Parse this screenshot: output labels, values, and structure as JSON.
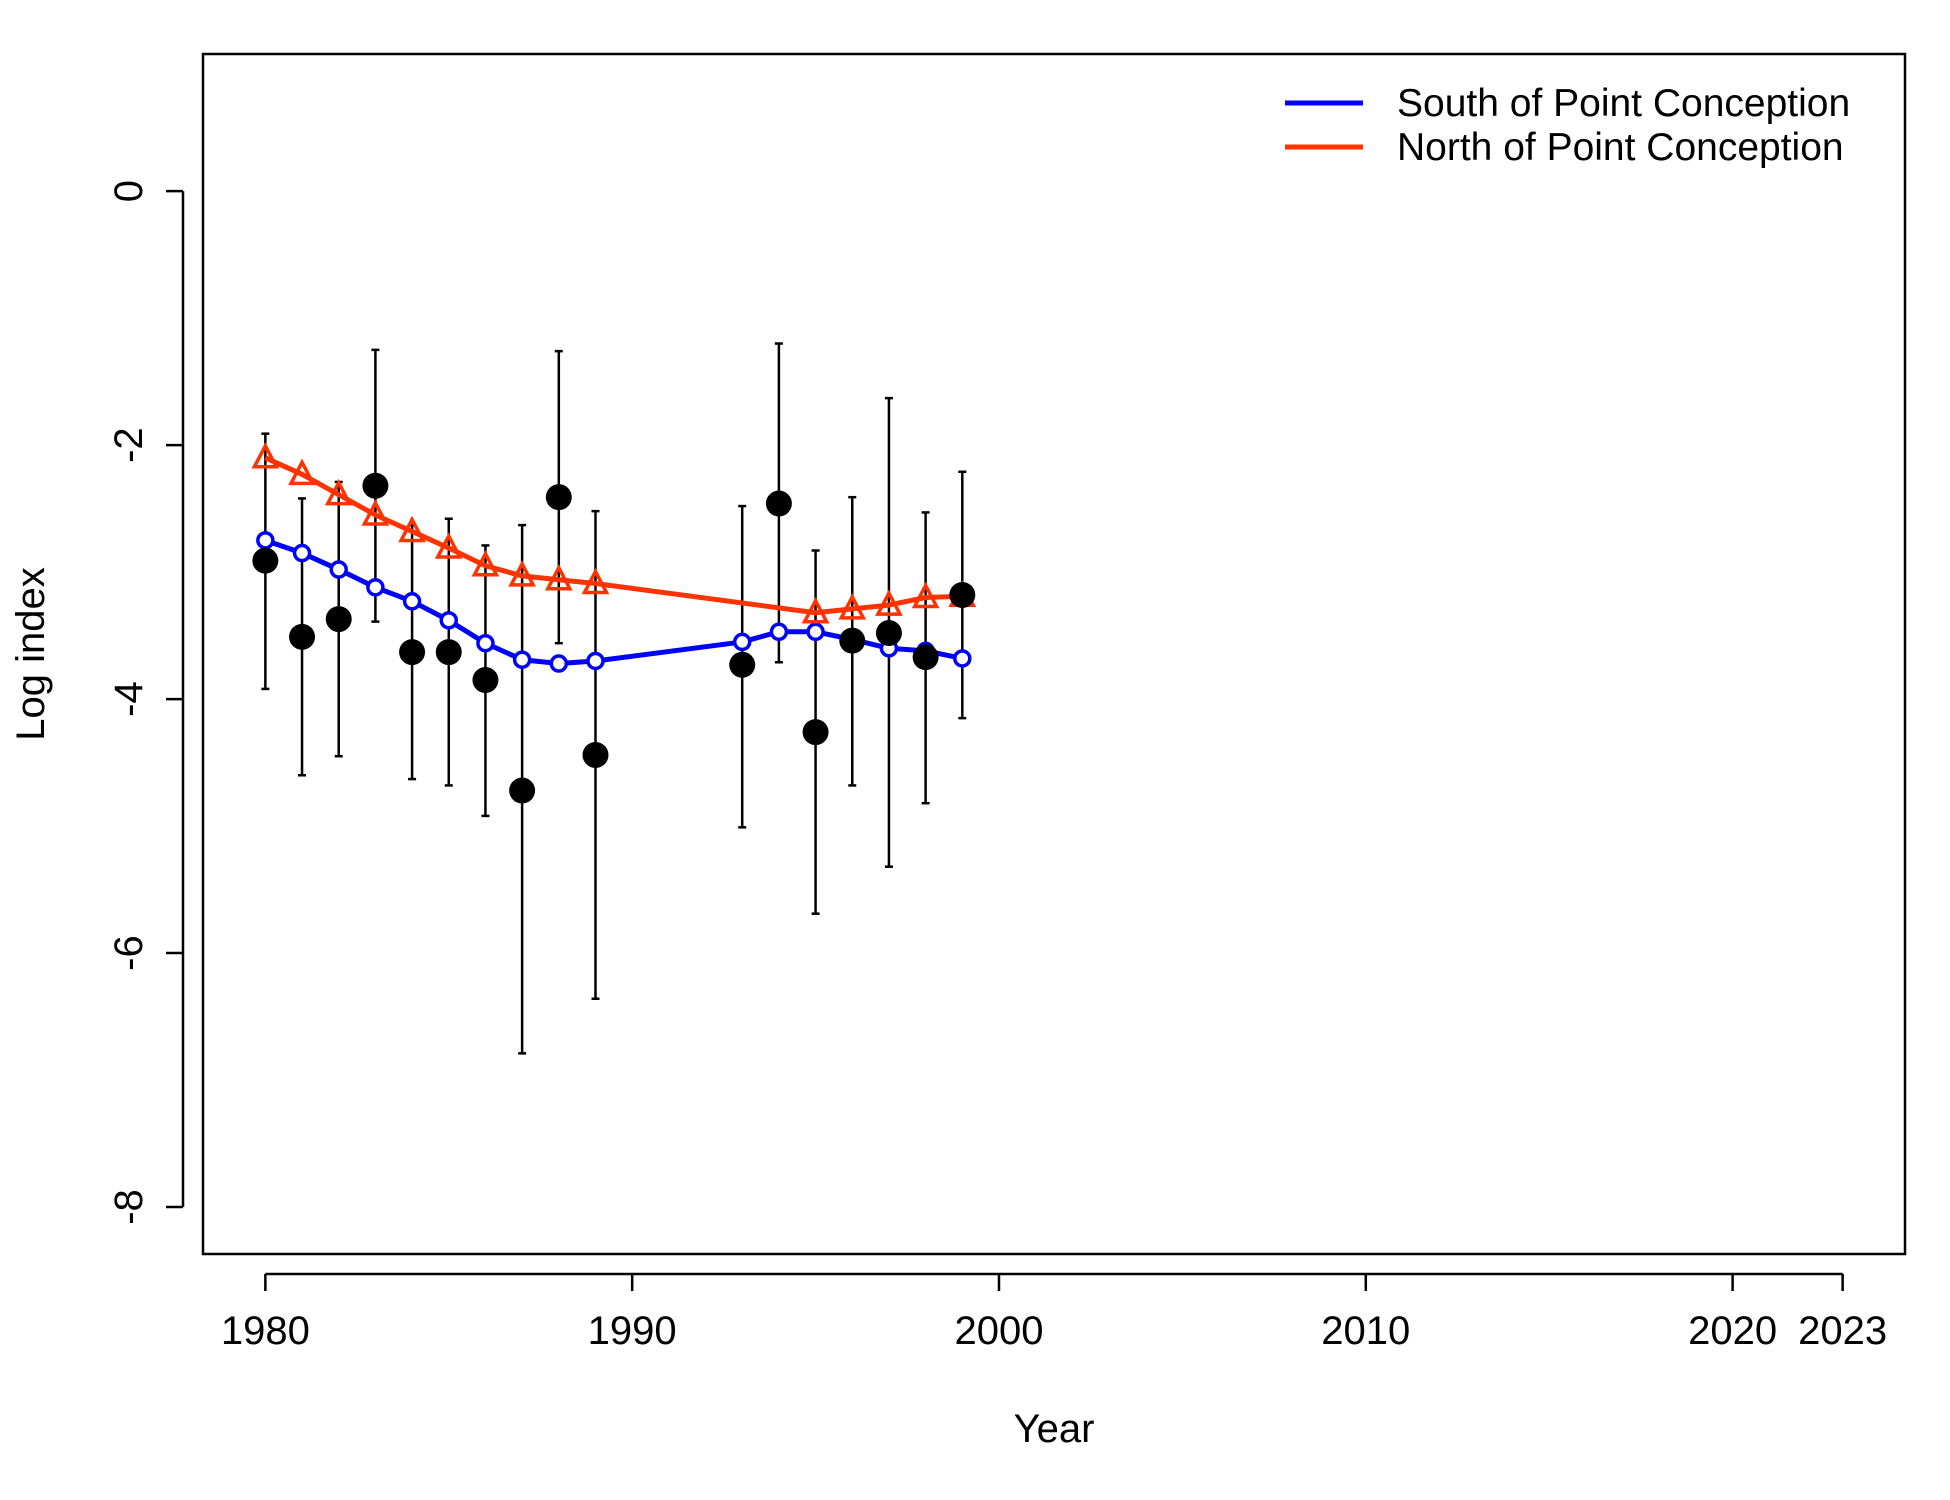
{
  "chart_data": {
    "type": "line",
    "title": "",
    "xlabel": "Year",
    "ylabel": "Log index",
    "xlim": [
      1978.3,
      2024.7
    ],
    "ylim": [
      -8.37,
      1.08
    ],
    "x_ticks": [
      1980,
      1990,
      2000,
      2010,
      2020,
      2023
    ],
    "y_ticks": [
      0,
      -2,
      -4,
      -6,
      -8
    ],
    "legend_position": "top-right",
    "grid": false,
    "series": [
      {
        "name": "South of Point Conception",
        "color": "#0000FF",
        "marker": "open-circle",
        "points": [
          {
            "x": 1980,
            "y": -2.75
          },
          {
            "x": 1981,
            "y": -2.85
          },
          {
            "x": 1982,
            "y": -2.98
          },
          {
            "x": 1983,
            "y": -3.12
          },
          {
            "x": 1984,
            "y": -3.23
          },
          {
            "x": 1985,
            "y": -3.38
          },
          {
            "x": 1986,
            "y": -3.56
          },
          {
            "x": 1987,
            "y": -3.69
          },
          {
            "x": 1988,
            "y": -3.72
          },
          {
            "x": 1989,
            "y": -3.7
          },
          {
            "x": 1993,
            "y": -3.55
          },
          {
            "x": 1994,
            "y": -3.47
          },
          {
            "x": 1995,
            "y": -3.47
          },
          {
            "x": 1996,
            "y": -3.53
          },
          {
            "x": 1997,
            "y": -3.6
          },
          {
            "x": 1998,
            "y": -3.62
          },
          {
            "x": 1999,
            "y": -3.68
          }
        ]
      },
      {
        "name": "North of Point Conception",
        "color": "#FF3300",
        "marker": "open-triangle",
        "points": [
          {
            "x": 1980,
            "y": -2.1
          },
          {
            "x": 1981,
            "y": -2.23
          },
          {
            "x": 1982,
            "y": -2.39
          },
          {
            "x": 1983,
            "y": -2.55
          },
          {
            "x": 1984,
            "y": -2.68
          },
          {
            "x": 1985,
            "y": -2.81
          },
          {
            "x": 1986,
            "y": -2.95
          },
          {
            "x": 1987,
            "y": -3.03
          },
          {
            "x": 1988,
            "y": -3.06
          },
          {
            "x": 1989,
            "y": -3.09
          },
          {
            "x": 1995,
            "y": -3.32
          },
          {
            "x": 1996,
            "y": -3.29
          },
          {
            "x": 1997,
            "y": -3.26
          },
          {
            "x": 1998,
            "y": -3.2
          },
          {
            "x": 1999,
            "y": -3.19
          }
        ]
      }
    ],
    "observations": {
      "color": "#000000",
      "marker": "filled-circle",
      "points": [
        {
          "x": 1980,
          "y": -2.91,
          "lower": -3.92,
          "upper": -1.91
        },
        {
          "x": 1981,
          "y": -3.51,
          "lower": -4.6,
          "upper": -2.42
        },
        {
          "x": 1982,
          "y": -3.37,
          "lower": -4.45,
          "upper": -2.29
        },
        {
          "x": 1983,
          "y": -2.32,
          "lower": -3.39,
          "upper": -1.25
        },
        {
          "x": 1984,
          "y": -3.63,
          "lower": -4.63,
          "upper": -2.63
        },
        {
          "x": 1985,
          "y": -3.63,
          "lower": -4.68,
          "upper": -2.58
        },
        {
          "x": 1986,
          "y": -3.85,
          "lower": -4.92,
          "upper": -2.79
        },
        {
          "x": 1987,
          "y": -4.72,
          "lower": -6.79,
          "upper": -2.63
        },
        {
          "x": 1988,
          "y": -2.41,
          "lower": -3.56,
          "upper": -1.26
        },
        {
          "x": 1989,
          "y": -4.44,
          "lower": -6.36,
          "upper": -2.52
        },
        {
          "x": 1993,
          "y": -3.73,
          "lower": -5.01,
          "upper": -2.48
        },
        {
          "x": 1994,
          "y": -2.46,
          "lower": -3.71,
          "upper": -1.2
        },
        {
          "x": 1995,
          "y": -4.26,
          "lower": -5.69,
          "upper": -2.83
        },
        {
          "x": 1996,
          "y": -3.54,
          "lower": -4.68,
          "upper": -2.41
        },
        {
          "x": 1997,
          "y": -3.48,
          "lower": -5.32,
          "upper": -1.63
        },
        {
          "x": 1998,
          "y": -3.67,
          "lower": -4.82,
          "upper": -2.53
        },
        {
          "x": 1999,
          "y": -3.18,
          "lower": -4.15,
          "upper": -2.21
        }
      ]
    }
  }
}
